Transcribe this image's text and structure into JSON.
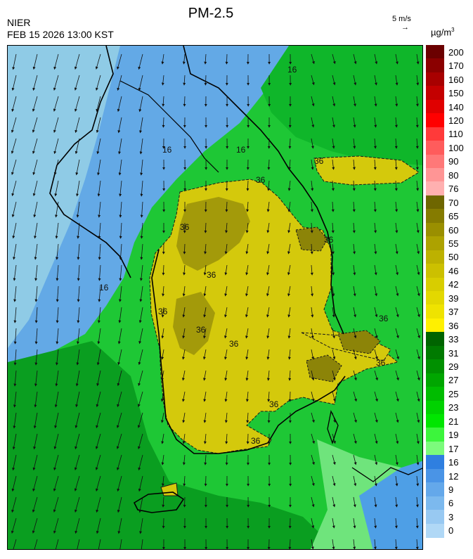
{
  "header": {
    "title": "PM-2.5",
    "agency": "NIER",
    "timestamp": "FEB 15 2026 13:00 KST",
    "wind_scale_label": "5 m/s",
    "wind_scale_arrow": "→",
    "unit": "µg/m",
    "unit_power": "3"
  },
  "map": {
    "contour_labels": [
      "16",
      "16",
      "16",
      "16",
      "36",
      "36",
      "36",
      "36",
      "36",
      "36",
      "36",
      "36",
      "36",
      "36",
      "36",
      "36"
    ],
    "colors": {
      "sea_light": "#8fcbe6",
      "sea_blue": "#63a9e6",
      "green_dark": "#0a8f1c",
      "green_mid": "#0cb826",
      "green_bright": "#1ed131",
      "green_light": "#55e466",
      "yellow": "#d6cc0a",
      "olive": "#a49c0b",
      "olive_dark": "#7c7309"
    }
  },
  "legend": {
    "levels": [
      {
        "label": "200",
        "color": "#6b0000"
      },
      {
        "label": "170",
        "color": "#8b0000"
      },
      {
        "label": "160",
        "color": "#a80000"
      },
      {
        "label": "150",
        "color": "#c40000"
      },
      {
        "label": "140",
        "color": "#e00000"
      },
      {
        "label": "120",
        "color": "#ff0000"
      },
      {
        "label": "110",
        "color": "#ff3a3a"
      },
      {
        "label": "100",
        "color": "#ff5c5c"
      },
      {
        "label": "90",
        "color": "#ff7878"
      },
      {
        "label": "80",
        "color": "#ff9595"
      },
      {
        "label": "76",
        "color": "#ffb0b0"
      },
      {
        "label": "70",
        "color": "#6e6600"
      },
      {
        "label": "65",
        "color": "#857b00"
      },
      {
        "label": "60",
        "color": "#9a8f00"
      },
      {
        "label": "55",
        "color": "#ada200"
      },
      {
        "label": "50",
        "color": "#bdb100"
      },
      {
        "label": "46",
        "color": "#ccc000"
      },
      {
        "label": "42",
        "color": "#d8cd00"
      },
      {
        "label": "39",
        "color": "#e3d800"
      },
      {
        "label": "37",
        "color": "#efe300"
      },
      {
        "label": "36",
        "color": "#fff000"
      },
      {
        "label": "33",
        "color": "#006400"
      },
      {
        "label": "31",
        "color": "#007a00"
      },
      {
        "label": "29",
        "color": "#009000"
      },
      {
        "label": "27",
        "color": "#00a600"
      },
      {
        "label": "25",
        "color": "#00bc00"
      },
      {
        "label": "23",
        "color": "#00d200"
      },
      {
        "label": "21",
        "color": "#00e600"
      },
      {
        "label": "19",
        "color": "#3cf53c"
      },
      {
        "label": "17",
        "color": "#7cfb7c"
      },
      {
        "label": "16",
        "color": "#2f7fe0"
      },
      {
        "label": "12",
        "color": "#4a94e6"
      },
      {
        "label": "9",
        "color": "#64a8ea"
      },
      {
        "label": "6",
        "color": "#7cb9ee"
      },
      {
        "label": "3",
        "color": "#98c9f2"
      },
      {
        "label": "0",
        "color": "#b0d8f6"
      }
    ]
  }
}
